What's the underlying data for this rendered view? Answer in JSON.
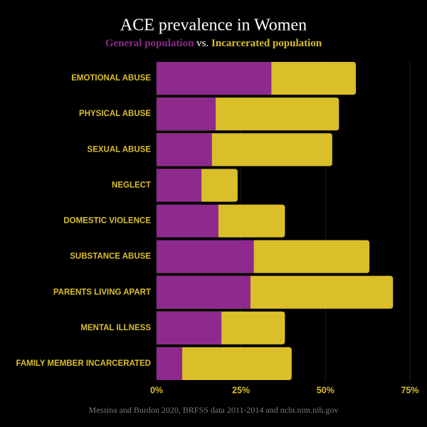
{
  "chart_data": {
    "type": "bar",
    "orientation": "horizontal",
    "title": "ACE prevalence in Women",
    "subtitle_joiner": "vs.",
    "source": "Messina and Burdon 2020, BRFSS data 2011-2014 and ncbi.nim.nih.gov",
    "categories": [
      "EMOTIONAL ABUSE",
      "PHYSICAL ABUSE",
      "SEXUAL ABUSE",
      "NEGLECT",
      "DOMESTIC VIOLENCE",
      "SUBSTANCE ABUSE",
      "PARENTS LIVING APART",
      "MENTAL ILLNESS",
      "FAMILY MEMBER INCARCERATED"
    ],
    "series": [
      {
        "name": "Incarcerated population",
        "color": "#dbbf2a",
        "values": [
          59,
          54,
          52,
          24,
          38,
          63,
          70,
          38,
          40
        ]
      },
      {
        "name": "General population",
        "color": "#8e2a8e",
        "values": [
          34,
          17.5,
          16.4,
          13.3,
          18.3,
          28.8,
          27.8,
          19.2,
          7.6
        ]
      }
    ],
    "xlim": [
      0,
      75
    ],
    "xticks": [
      {
        "value": 0,
        "label": "0%"
      },
      {
        "value": 25,
        "label": "25%"
      },
      {
        "value": 50,
        "label": "50%"
      },
      {
        "value": 75,
        "label": "75%"
      }
    ],
    "grid": true,
    "category_label_color": "#dbbf2a"
  }
}
